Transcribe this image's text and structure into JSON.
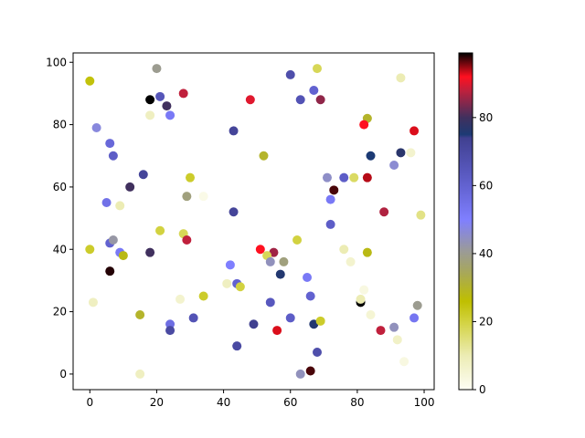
{
  "chart_data": {
    "type": "scatter",
    "title": "",
    "xlabel": "",
    "ylabel": "",
    "xlim": [
      -5,
      103
    ],
    "ylim": [
      -5,
      103
    ],
    "xticks": [
      0,
      20,
      40,
      60,
      80,
      100
    ],
    "yticks": [
      0,
      20,
      40,
      60,
      80,
      100
    ],
    "grid": false,
    "colorbar": {
      "range": [
        0,
        99
      ],
      "ticks": [
        0,
        20,
        40,
        60,
        80
      ],
      "colormap_stops": [
        {
          "v": 0,
          "color": "#fdfdf4"
        },
        {
          "v": 10,
          "color": "#ececb4"
        },
        {
          "v": 20,
          "color": "#d2d240"
        },
        {
          "v": 26,
          "color": "#bfbf00"
        },
        {
          "v": 35,
          "color": "#a6a660"
        },
        {
          "v": 41,
          "color": "#9a9a9a"
        },
        {
          "v": 50,
          "color": "#7f7fff"
        },
        {
          "v": 60,
          "color": "#6262d0"
        },
        {
          "v": 74,
          "color": "#404090"
        },
        {
          "v": 75,
          "color": "#1c3a74"
        },
        {
          "v": 80,
          "color": "#40305e"
        },
        {
          "v": 88,
          "color": "#c0203c"
        },
        {
          "v": 92,
          "color": "#ff1020"
        },
        {
          "v": 99,
          "color": "#000000"
        }
      ]
    },
    "points": [
      [
        0,
        94,
        25
      ],
      [
        20,
        98,
        40
      ],
      [
        18,
        88,
        99
      ],
      [
        21,
        89,
        65
      ],
      [
        28,
        90,
        88
      ],
      [
        23,
        86,
        80
      ],
      [
        18,
        83,
        8
      ],
      [
        24,
        83,
        52
      ],
      [
        48,
        88,
        90
      ],
      [
        2,
        79,
        47
      ],
      [
        43,
        78,
        72
      ],
      [
        6,
        74,
        58
      ],
      [
        7,
        70,
        62
      ],
      [
        16,
        64,
        72
      ],
      [
        30,
        63,
        22
      ],
      [
        12,
        60,
        80
      ],
      [
        29,
        57,
        38
      ],
      [
        34,
        57,
        2
      ],
      [
        5,
        55,
        55
      ],
      [
        9,
        54,
        10
      ],
      [
        43,
        52,
        72
      ],
      [
        60,
        96,
        68
      ],
      [
        68,
        98,
        18
      ],
      [
        63,
        88,
        66
      ],
      [
        67,
        91,
        60
      ],
      [
        69,
        88,
        85
      ],
      [
        83,
        82,
        30
      ],
      [
        82,
        80,
        92
      ],
      [
        93,
        95,
        10
      ],
      [
        97,
        78,
        93
      ],
      [
        52,
        70,
        30
      ],
      [
        84,
        70,
        75
      ],
      [
        93,
        71,
        77
      ],
      [
        96,
        71,
        6
      ],
      [
        71,
        63,
        45
      ],
      [
        76,
        63,
        62
      ],
      [
        79,
        63,
        17
      ],
      [
        83,
        63,
        94
      ],
      [
        91,
        67,
        46
      ],
      [
        73,
        59,
        97
      ],
      [
        72,
        56,
        52
      ],
      [
        72,
        48,
        62
      ],
      [
        88,
        52,
        87
      ],
      [
        99,
        51,
        14
      ],
      [
        0,
        40,
        22
      ],
      [
        21,
        46,
        20
      ],
      [
        28,
        45,
        18
      ],
      [
        29,
        43,
        88
      ],
      [
        6,
        42,
        60
      ],
      [
        7,
        43,
        42
      ],
      [
        9,
        39,
        52
      ],
      [
        10,
        38,
        28
      ],
      [
        18,
        39,
        80
      ],
      [
        6,
        33,
        98
      ],
      [
        1,
        23,
        8
      ],
      [
        15,
        19,
        30
      ],
      [
        27,
        24,
        6
      ],
      [
        34,
        25,
        22
      ],
      [
        41,
        29,
        8
      ],
      [
        42,
        35,
        50
      ],
      [
        44,
        29,
        60
      ],
      [
        45,
        28,
        20
      ],
      [
        15,
        0,
        8
      ],
      [
        24,
        16,
        56
      ],
      [
        24,
        14,
        70
      ],
      [
        31,
        18,
        66
      ],
      [
        44,
        9,
        70
      ],
      [
        51,
        40,
        92
      ],
      [
        55,
        39,
        86
      ],
      [
        53,
        38,
        18
      ],
      [
        54,
        36,
        44
      ],
      [
        58,
        36,
        38
      ],
      [
        62,
        43,
        20
      ],
      [
        57,
        32,
        76
      ],
      [
        65,
        31,
        52
      ],
      [
        54,
        23,
        64
      ],
      [
        66,
        25,
        60
      ],
      [
        49,
        16,
        74
      ],
      [
        56,
        14,
        93
      ],
      [
        60,
        18,
        62
      ],
      [
        67,
        16,
        76
      ],
      [
        69,
        17,
        22
      ],
      [
        68,
        7,
        68
      ],
      [
        63,
        0,
        44
      ],
      [
        66,
        1,
        97
      ],
      [
        76,
        40,
        10
      ],
      [
        78,
        36,
        6
      ],
      [
        83,
        39,
        28
      ],
      [
        82,
        27,
        3
      ],
      [
        81,
        23,
        99
      ],
      [
        81,
        24,
        10
      ],
      [
        84,
        19,
        5
      ],
      [
        87,
        14,
        88
      ],
      [
        91,
        15,
        44
      ],
      [
        98,
        22,
        40
      ],
      [
        97,
        18,
        53
      ],
      [
        92,
        11,
        7
      ],
      [
        94,
        4,
        3
      ]
    ]
  }
}
